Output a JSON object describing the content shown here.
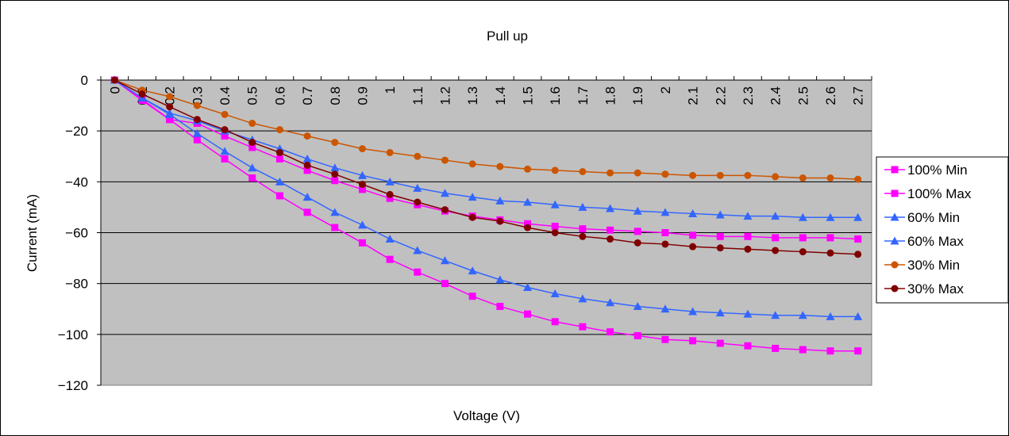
{
  "chart_data": {
    "type": "line",
    "title": "Pull up",
    "xlabel": "Voltage (V)",
    "ylabel": "Current (mA)",
    "ylim": [
      -120,
      0
    ],
    "yticks": [
      "0",
      "−20",
      "−40",
      "−60",
      "−80",
      "−100",
      "−120"
    ],
    "yticks_values": [
      0,
      -20,
      -40,
      -60,
      -80,
      -100,
      -120
    ],
    "categories": [
      "0",
      "0.1",
      "0.2",
      "0.3",
      "0.4",
      "0.5",
      "0.6",
      "0.7",
      "0.8",
      "0.9",
      "1",
      "1.1",
      "1.2",
      "1.3",
      "1.4",
      "1.5",
      "1.6",
      "1.7",
      "1.8",
      "1.9",
      "2",
      "2.1",
      "2.2",
      "2.3",
      "2.4",
      "2.5",
      "2.6",
      "2.7"
    ],
    "grid": true,
    "plot_background": "#c0c0c0",
    "legend_position": "right",
    "series": [
      {
        "name": "100% Min",
        "color": "#ff00ff",
        "marker": "square",
        "values": [
          0,
          -7.5,
          -15.5,
          -17,
          -22,
          -26.5,
          -31,
          -35.5,
          -39.5,
          -43,
          -46.5,
          -49,
          -51.5,
          -53.5,
          -55,
          -56.5,
          -57.5,
          -58.5,
          -59,
          -59.5,
          -60,
          -61,
          -61.5,
          -61.5,
          -62,
          -62,
          -62,
          -62.5
        ]
      },
      {
        "name": "100% Max",
        "color": "#ff00ff",
        "marker": "square",
        "values": [
          0,
          -8,
          -15.5,
          -23.5,
          -31,
          -38.5,
          -45.5,
          -52,
          -58,
          -64,
          -70.5,
          -75.5,
          -80,
          -85,
          -89,
          -92,
          -95,
          -97,
          -99,
          -100.5,
          -102,
          -102.5,
          -103.5,
          -104.5,
          -105.5,
          -106,
          -106.5,
          -106.5
        ]
      },
      {
        "name": "60% Min",
        "color": "#3366ff",
        "marker": "triangle",
        "values": [
          0,
          -7,
          -13,
          -16,
          -20,
          -23.5,
          -27,
          -31,
          -34.5,
          -37.5,
          -40,
          -42.5,
          -44.5,
          -46,
          -47.5,
          -48,
          -49,
          -50,
          -50.5,
          -51.5,
          -52,
          -52.5,
          -53,
          -53.5,
          -53.5,
          -54,
          -54,
          -54
        ]
      },
      {
        "name": "60% Max",
        "color": "#3366ff",
        "marker": "triangle",
        "values": [
          0,
          -7,
          -13.5,
          -21,
          -28,
          -34.5,
          -40,
          -46,
          -52,
          -57,
          -62.5,
          -67,
          -71,
          -75,
          -78.5,
          -81.5,
          -84,
          -86,
          -87.5,
          -89,
          -90,
          -91,
          -91.5,
          -92,
          -92.5,
          -92.5,
          -93,
          -93
        ]
      },
      {
        "name": "30% Min",
        "color": "#cc5500",
        "marker": "circle",
        "values": [
          0,
          -4,
          -6.5,
          -10,
          -13.5,
          -17,
          -19.5,
          -22,
          -24.5,
          -27,
          -28.5,
          -30,
          -31.5,
          -33,
          -34,
          -35,
          -35.5,
          -36,
          -36.5,
          -36.5,
          -37,
          -37.5,
          -37.5,
          -37.5,
          -38,
          -38.5,
          -38.5,
          -39
        ]
      },
      {
        "name": "30% Max",
        "color": "#800000",
        "marker": "circle",
        "values": [
          0,
          -5.5,
          -10.5,
          -15.5,
          -19.5,
          -24.5,
          -28.5,
          -33.5,
          -37,
          -41,
          -45,
          -48,
          -51,
          -54,
          -55.5,
          -58,
          -60,
          -61.5,
          -62.5,
          -64,
          -64.5,
          -65.5,
          -66,
          -66.5,
          -67,
          -67.5,
          -68,
          -68.5
        ]
      }
    ]
  }
}
